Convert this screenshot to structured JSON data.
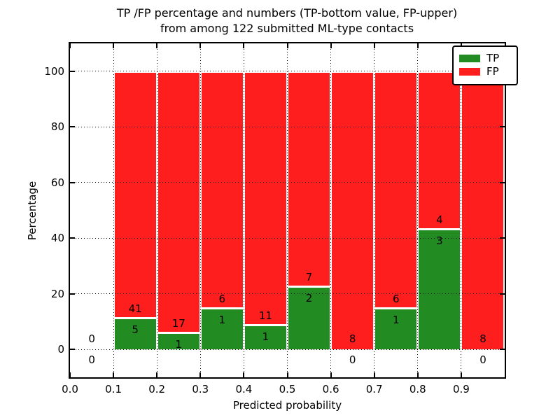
{
  "title": {
    "line1": "TP /FP percentage and numbers (TP-bottom value, FP-upper)",
    "line2": "from among 122 submitted ML-type contacts"
  },
  "axes": {
    "xlabel": "Predicted probability",
    "ylabel": "Percentage",
    "x_tick_labels": [
      "0.0",
      "0.1",
      "0.2",
      "0.3",
      "0.4",
      "0.5",
      "0.6",
      "0.7",
      "0.8",
      "0.9"
    ],
    "y_tick_labels": [
      "0",
      "20",
      "40",
      "60",
      "80",
      "100"
    ]
  },
  "legend": {
    "items": [
      {
        "label": "TP",
        "color": "#228b22"
      },
      {
        "label": "FP",
        "color": "#ff1e1e"
      }
    ]
  },
  "chart_data": {
    "type": "bar",
    "stacked": true,
    "title": "TP /FP percentage and numbers (TP-bottom value, FP-upper) from among 122 submitted ML-type contacts",
    "xlabel": "Predicted probability",
    "ylabel": "Percentage",
    "xlim": [
      0.0,
      1.0
    ],
    "ylim": [
      -10,
      110
    ],
    "grid": "dotted",
    "legend_position": "upper right",
    "total_contacts": 122,
    "x_ticks": [
      0.0,
      0.1,
      0.2,
      0.3,
      0.4,
      0.5,
      0.6,
      0.7,
      0.8,
      0.9
    ],
    "y_ticks": [
      0,
      20,
      40,
      60,
      80,
      100
    ],
    "categories": [
      "0.0-0.1",
      "0.1-0.2",
      "0.2-0.3",
      "0.3-0.4",
      "0.4-0.5",
      "0.5-0.6",
      "0.6-0.7",
      "0.7-0.8",
      "0.8-0.9",
      "0.9-1.0"
    ],
    "bin_edges": [
      0.0,
      0.1,
      0.2,
      0.3,
      0.4,
      0.5,
      0.6,
      0.7,
      0.8,
      0.9,
      1.0
    ],
    "series": [
      {
        "name": "TP",
        "color": "#228b22",
        "counts": [
          0,
          5,
          1,
          1,
          1,
          2,
          0,
          1,
          3,
          0
        ],
        "values_pct": [
          0,
          10.87,
          5.56,
          14.29,
          8.33,
          22.22,
          0,
          14.29,
          42.86,
          0
        ]
      },
      {
        "name": "FP",
        "color": "#ff1e1e",
        "counts": [
          0,
          41,
          17,
          6,
          11,
          7,
          8,
          6,
          4,
          8
        ],
        "values_pct": [
          0,
          89.13,
          94.44,
          85.71,
          91.67,
          77.78,
          100,
          85.71,
          57.14,
          100
        ]
      }
    ]
  }
}
